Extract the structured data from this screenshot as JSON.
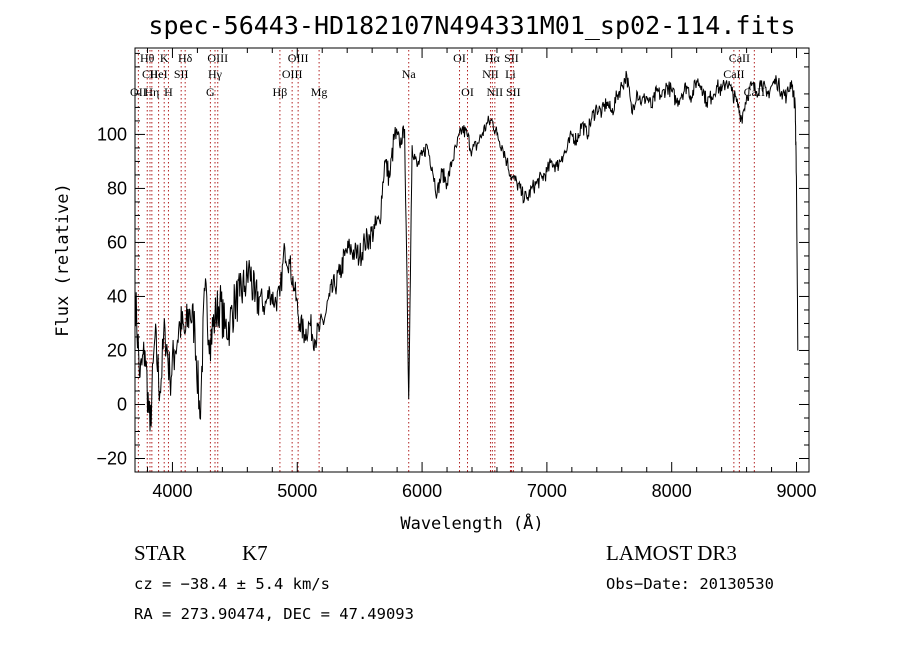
{
  "chart_data": {
    "type": "line",
    "title": "spec-56443-HD182107N494331M01_sp02-114.fits",
    "xlabel": "Wavelength (Å)",
    "ylabel": "Flux (relative)",
    "xlim": [
      3700,
      9100
    ],
    "ylim": [
      -25,
      132
    ],
    "xticks": [
      4000,
      5000,
      6000,
      7000,
      8000,
      9000
    ],
    "yticks": [
      -20,
      0,
      20,
      40,
      60,
      80,
      100
    ],
    "xtick_labels": [
      "4000",
      "5000",
      "6000",
      "7000",
      "8000",
      "9000"
    ],
    "ytick_labels": [
      "−20",
      "0",
      "20",
      "40",
      "60",
      "80",
      "100"
    ],
    "grid": false,
    "series": [
      {
        "name": "flux",
        "x": [
          3700,
          3740,
          3780,
          3820,
          3860,
          3900,
          3940,
          3980,
          4020,
          4060,
          4100,
          4140,
          4180,
          4220,
          4260,
          4300,
          4340,
          4380,
          4420,
          4460,
          4500,
          4540,
          4580,
          4620,
          4660,
          4700,
          4740,
          4780,
          4820,
          4860,
          4900,
          4940,
          4980,
          5020,
          5060,
          5100,
          5140,
          5180,
          5220,
          5260,
          5300,
          5340,
          5380,
          5420,
          5460,
          5500,
          5540,
          5580,
          5620,
          5660,
          5700,
          5740,
          5780,
          5820,
          5860,
          5893,
          5920,
          5960,
          6000,
          6040,
          6080,
          6120,
          6160,
          6200,
          6240,
          6280,
          6320,
          6360,
          6400,
          6440,
          6480,
          6520,
          6563,
          6600,
          6640,
          6680,
          6720,
          6760,
          6800,
          6840,
          6880,
          6920,
          6960,
          7000,
          7040,
          7080,
          7120,
          7160,
          7200,
          7240,
          7280,
          7320,
          7360,
          7400,
          7440,
          7480,
          7520,
          7560,
          7600,
          7640,
          7680,
          7720,
          7760,
          7800,
          7840,
          7880,
          7920,
          7960,
          8000,
          8040,
          8080,
          8120,
          8160,
          8200,
          8240,
          8280,
          8320,
          8360,
          8400,
          8440,
          8480,
          8520,
          8560,
          8600,
          8640,
          8680,
          8720,
          8760,
          8800,
          8840,
          8880,
          8920,
          8960,
          8990,
          9000,
          9010
        ],
        "y": [
          42,
          10,
          20,
          -10,
          25,
          5,
          28,
          10,
          20,
          30,
          26,
          35,
          28,
          -5,
          42,
          24,
          32,
          38,
          28,
          30,
          38,
          40,
          44,
          50,
          38,
          40,
          36,
          42,
          38,
          40,
          58,
          52,
          42,
          30,
          26,
          30,
          24,
          28,
          32,
          40,
          44,
          48,
          55,
          58,
          56,
          55,
          60,
          62,
          65,
          68,
          90,
          84,
          100,
          96,
          102,
          2,
          96,
          88,
          92,
          96,
          88,
          78,
          86,
          82,
          90,
          96,
          102,
          100,
          94,
          96,
          100,
          104,
          105,
          100,
          96,
          90,
          84,
          82,
          78,
          76,
          80,
          82,
          84,
          86,
          90,
          88,
          92,
          94,
          100,
          98,
          104,
          100,
          106,
          110,
          108,
          112,
          108,
          114,
          118,
          122,
          108,
          116,
          112,
          114,
          110,
          116,
          114,
          118,
          116,
          112,
          115,
          118,
          114,
          120,
          118,
          112,
          114,
          118,
          116,
          120,
          116,
          112,
          106,
          114,
          118,
          116,
          120,
          114,
          118,
          120,
          116,
          114,
          120,
          110,
          80,
          20
        ]
      }
    ],
    "spectral_lines": [
      {
        "label": "Hθ",
        "wavelength": 3798,
        "row": 1
      },
      {
        "label": "CII",
        "wavelength": 3820,
        "row": 2
      },
      {
        "label": "OII",
        "wavelength": 3727,
        "row": 3
      },
      {
        "label": "Hη",
        "wavelength": 3835,
        "row": 3
      },
      {
        "label": "K",
        "wavelength": 3934,
        "row": 1
      },
      {
        "label": "HeI",
        "wavelength": 3889,
        "row": 2
      },
      {
        "label": "Hδ",
        "wavelength": 4102,
        "row": 1
      },
      {
        "label": "SII",
        "wavelength": 4070,
        "row": 2
      },
      {
        "label": "H",
        "wavelength": 3968,
        "row": 3
      },
      {
        "label": "OIII",
        "wavelength": 4363,
        "row": 1
      },
      {
        "label": "Hγ",
        "wavelength": 4341,
        "row": 2
      },
      {
        "label": "G",
        "wavelength": 4304,
        "row": 3
      },
      {
        "label": "OIII",
        "wavelength": 5007,
        "row": 1
      },
      {
        "label": "OIII",
        "wavelength": 4959,
        "row": 2
      },
      {
        "label": "Hβ",
        "wavelength": 4861,
        "row": 3
      },
      {
        "label": "Mg",
        "wavelength": 5175,
        "row": 3
      },
      {
        "label": "Na",
        "wavelength": 5893,
        "row": 2
      },
      {
        "label": "OI",
        "wavelength": 6300,
        "row": 1
      },
      {
        "label": "OI",
        "wavelength": 6364,
        "row": 3
      },
      {
        "label": "Hα",
        "wavelength": 6563,
        "row": 1
      },
      {
        "label": "SII",
        "wavelength": 6716,
        "row": 1
      },
      {
        "label": "NII",
        "wavelength": 6548,
        "row": 2
      },
      {
        "label": "Li",
        "wavelength": 6708,
        "row": 2
      },
      {
        "label": "NII",
        "wavelength": 6583,
        "row": 3
      },
      {
        "label": "SII",
        "wavelength": 6731,
        "row": 3
      },
      {
        "label": "CaII",
        "wavelength": 8542,
        "row": 1
      },
      {
        "label": "CaII",
        "wavelength": 8498,
        "row": 2
      },
      {
        "label": "CaII",
        "wavelength": 8662,
        "row": 3
      }
    ]
  },
  "info": {
    "object_class": "STAR",
    "subclass": "K7",
    "survey": "LAMOST DR3",
    "cz": "cz = −38.4 ± 5.4 km/s",
    "obs_date": "Obs−Date: 20130530",
    "coords": "RA = 273.90474, DEC =  47.49093"
  },
  "colors": {
    "spectrum": "#000000",
    "line_markers": "#b22222",
    "background": "#ffffff"
  }
}
